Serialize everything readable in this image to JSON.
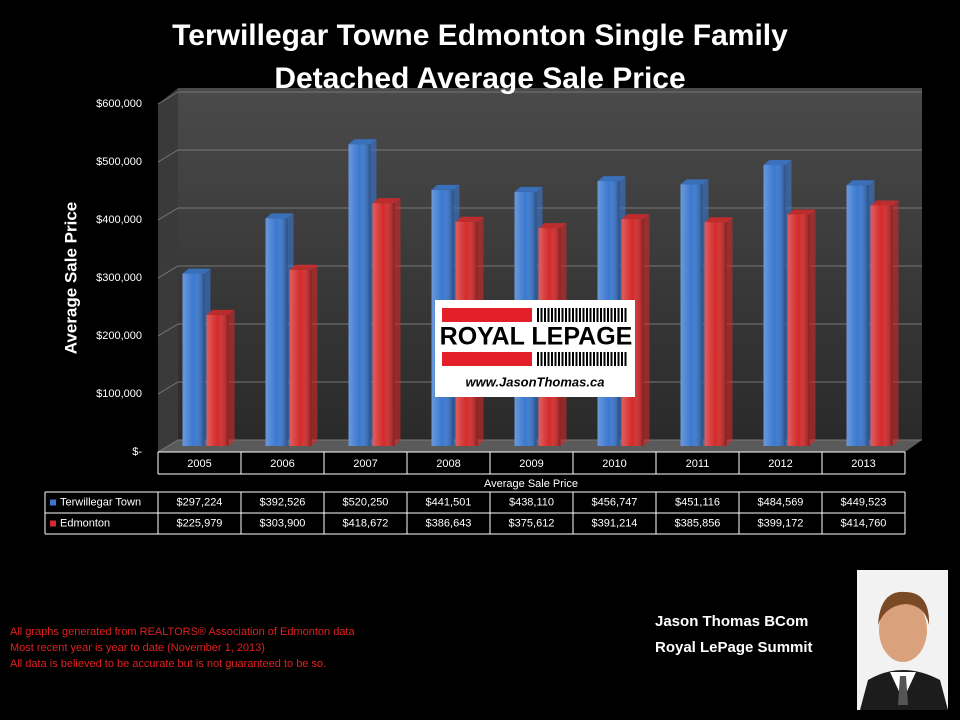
{
  "chart_data": {
    "type": "bar",
    "title": "Terwillegar Towne Edmonton Single Family Detached Average Sale Price",
    "y_label": "Average Sale Price",
    "x_label": "Average Sale Price",
    "categories": [
      "2005",
      "2006",
      "2007",
      "2008",
      "2009",
      "2010",
      "2011",
      "2012",
      "2013"
    ],
    "series": [
      {
        "name": "Terwillegar Town",
        "color": "#3a78d0",
        "values": [
          297224,
          392526,
          520250,
          441501,
          438110,
          456747,
          451116,
          484569,
          449523
        ],
        "value_labels": [
          "$297,224",
          "$392,526",
          "$520,250",
          "$441,501",
          "$438,110",
          "$456,747",
          "$451,116",
          "$484,569",
          "$449,523"
        ]
      },
      {
        "name": "Edmonton",
        "color": "#d42a2a",
        "values": [
          225979,
          303900,
          418672,
          386643,
          375612,
          391214,
          385856,
          399172,
          414760
        ],
        "value_labels": [
          "$225,979",
          "$303,900",
          "$418,672",
          "$386,643",
          "$375,612",
          "$391,214",
          "$385,856",
          "$399,172",
          "$414,760"
        ]
      }
    ],
    "ylim": [
      0,
      600000
    ],
    "yticks": [
      {
        "value": 0,
        "label": "$-"
      },
      {
        "value": 100000,
        "label": "$100,000"
      },
      {
        "value": 200000,
        "label": "$200,000"
      },
      {
        "value": 300000,
        "label": "$300,000"
      },
      {
        "value": 400000,
        "label": "$400,000"
      },
      {
        "value": 500000,
        "label": "$500,000"
      },
      {
        "value": 600000,
        "label": "$600,000"
      }
    ],
    "grid": true
  },
  "logo": {
    "brand": "ROYAL LEPAGE",
    "url": "www.JasonThomas.ca"
  },
  "footnotes": [
    "All graphs generated from REALTORS® Association of Edmonton data",
    "Most recent year is year to date (November 1, 2013)",
    "All data is believed to be accurate but is not guaranteed to be so."
  ],
  "agent": {
    "name": "Jason Thomas BCom",
    "company": "Royal LePage Summit"
  }
}
